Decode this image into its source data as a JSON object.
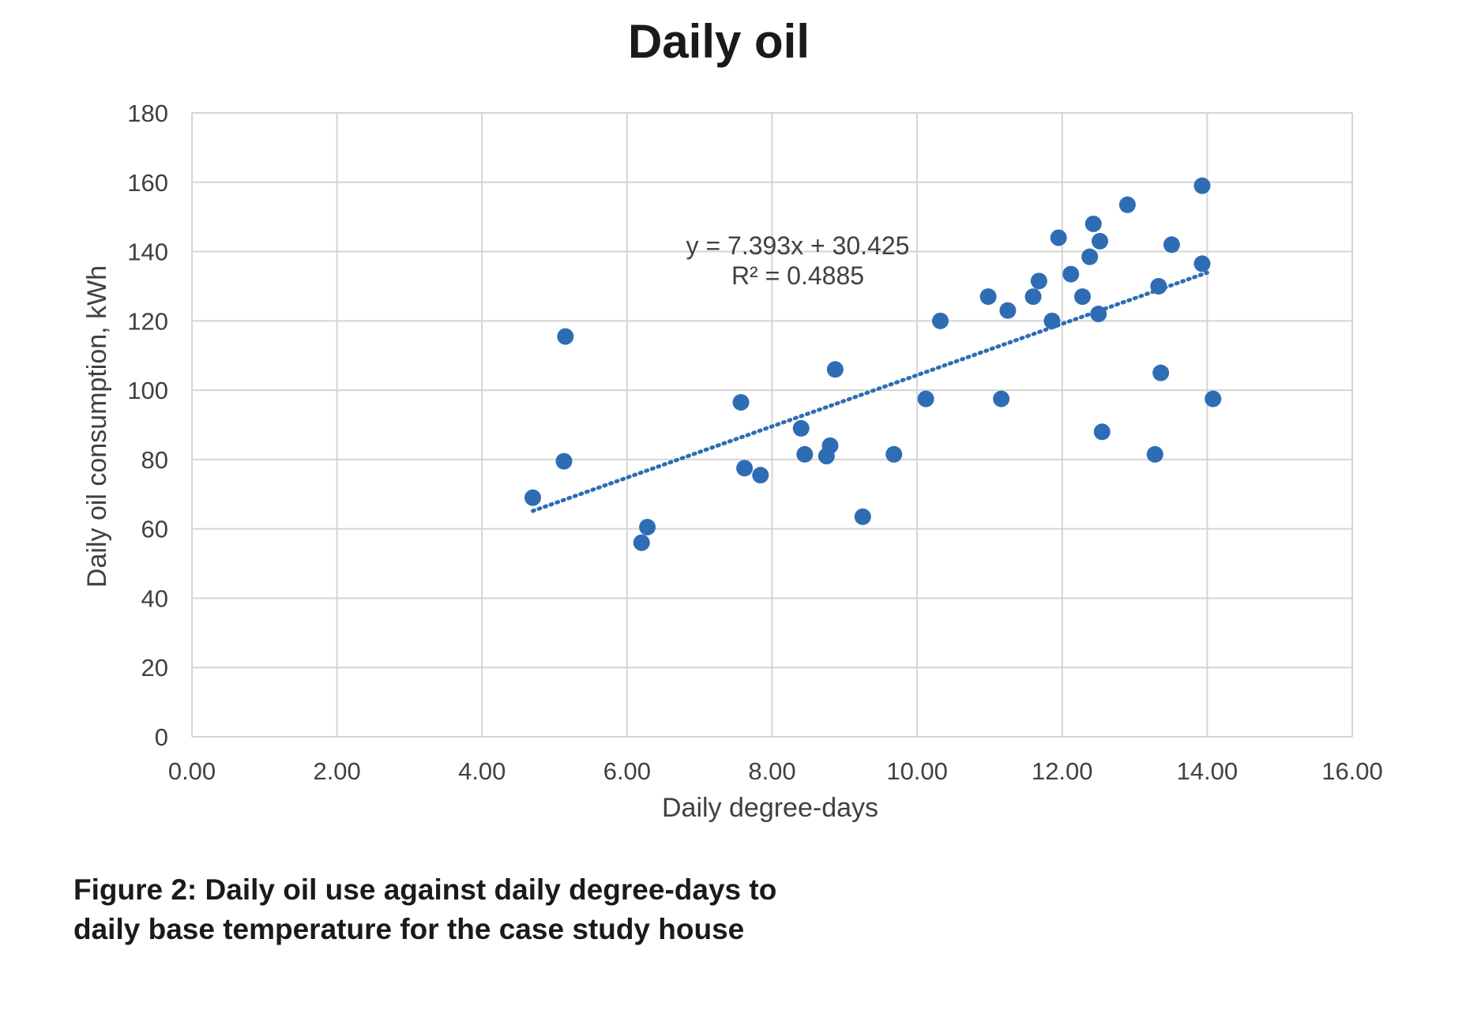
{
  "chart_data": {
    "type": "scatter",
    "title": "Daily oil",
    "xlabel": "Daily degree-days",
    "ylabel": "Daily oil consumption, kWh",
    "xlim": [
      0,
      16
    ],
    "ylim": [
      0,
      180
    ],
    "x_ticks": [
      "0.00",
      "2.00",
      "4.00",
      "6.00",
      "8.00",
      "10.00",
      "12.00",
      "14.00",
      "16.00"
    ],
    "y_ticks": [
      "0",
      "20",
      "40",
      "60",
      "80",
      "100",
      "120",
      "140",
      "160",
      "180"
    ],
    "grid": true,
    "marker_color": "#2e6db4",
    "trendline": {
      "type": "linear",
      "equation": "y = 7.393x + 30.425",
      "r_squared": "R² = 0.4885",
      "slope": 7.393,
      "intercept": 30.425,
      "x_range": [
        4.7,
        14.0
      ],
      "style": "dotted"
    },
    "points": [
      {
        "x": 4.7,
        "y": 69
      },
      {
        "x": 5.13,
        "y": 79.5
      },
      {
        "x": 5.15,
        "y": 115.5
      },
      {
        "x": 6.2,
        "y": 56
      },
      {
        "x": 6.28,
        "y": 60.5
      },
      {
        "x": 7.57,
        "y": 96.5
      },
      {
        "x": 7.62,
        "y": 77.5
      },
      {
        "x": 7.84,
        "y": 75.5
      },
      {
        "x": 8.4,
        "y": 89
      },
      {
        "x": 8.45,
        "y": 81.5
      },
      {
        "x": 8.75,
        "y": 81
      },
      {
        "x": 8.8,
        "y": 84
      },
      {
        "x": 8.87,
        "y": 106
      },
      {
        "x": 9.25,
        "y": 63.5
      },
      {
        "x": 9.68,
        "y": 81.5
      },
      {
        "x": 10.12,
        "y": 97.5
      },
      {
        "x": 10.32,
        "y": 120
      },
      {
        "x": 10.98,
        "y": 127
      },
      {
        "x": 11.16,
        "y": 97.5
      },
      {
        "x": 11.25,
        "y": 123
      },
      {
        "x": 11.6,
        "y": 127
      },
      {
        "x": 11.68,
        "y": 131.5
      },
      {
        "x": 11.86,
        "y": 120
      },
      {
        "x": 11.95,
        "y": 144
      },
      {
        "x": 12.12,
        "y": 133.5
      },
      {
        "x": 12.28,
        "y": 127
      },
      {
        "x": 12.38,
        "y": 138.5
      },
      {
        "x": 12.43,
        "y": 148
      },
      {
        "x": 12.5,
        "y": 122
      },
      {
        "x": 12.52,
        "y": 143
      },
      {
        "x": 12.55,
        "y": 88
      },
      {
        "x": 12.9,
        "y": 153.5
      },
      {
        "x": 13.28,
        "y": 81.5
      },
      {
        "x": 13.33,
        "y": 130
      },
      {
        "x": 13.36,
        "y": 105
      },
      {
        "x": 13.51,
        "y": 142
      },
      {
        "x": 13.93,
        "y": 159
      },
      {
        "x": 13.93,
        "y": 136.5
      },
      {
        "x": 14.08,
        "y": 97.5
      }
    ]
  },
  "caption": {
    "line1": "Figure 2: Daily oil use against daily degree-days to",
    "line2": "daily base temperature for the case study house"
  }
}
